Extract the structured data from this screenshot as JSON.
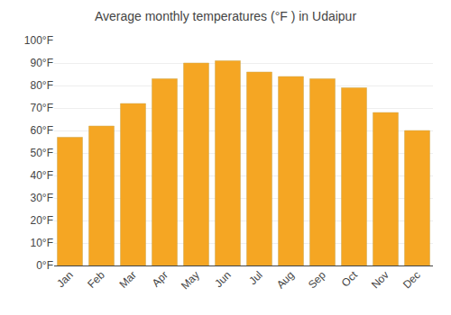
{
  "chart_data": {
    "type": "bar",
    "title": "Average monthly temperatures (°F ) in Udaipur",
    "categories": [
      "Jan",
      "Feb",
      "Mar",
      "Apr",
      "May",
      "Jun",
      "Jul",
      "Aug",
      "Sep",
      "Oct",
      "Nov",
      "Dec"
    ],
    "values": [
      57,
      62,
      72,
      83,
      90,
      91,
      86,
      84,
      83,
      79,
      68,
      60
    ],
    "color": "#F5A623",
    "ylim": [
      0,
      100
    ],
    "yticks": [
      {
        "value": 0,
        "label": "0°F"
      },
      {
        "value": 10,
        "label": "10°F"
      },
      {
        "value": 20,
        "label": "20°F"
      },
      {
        "value": 30,
        "label": "30°F"
      },
      {
        "value": 40,
        "label": "40°F"
      },
      {
        "value": 50,
        "label": "50°F"
      },
      {
        "value": 60,
        "label": "60°F"
      },
      {
        "value": 70,
        "label": "70°F"
      },
      {
        "value": 80,
        "label": "80°F"
      },
      {
        "value": 90,
        "label": "90°F"
      },
      {
        "value": 100,
        "label": "100°F"
      }
    ],
    "grid": true
  }
}
